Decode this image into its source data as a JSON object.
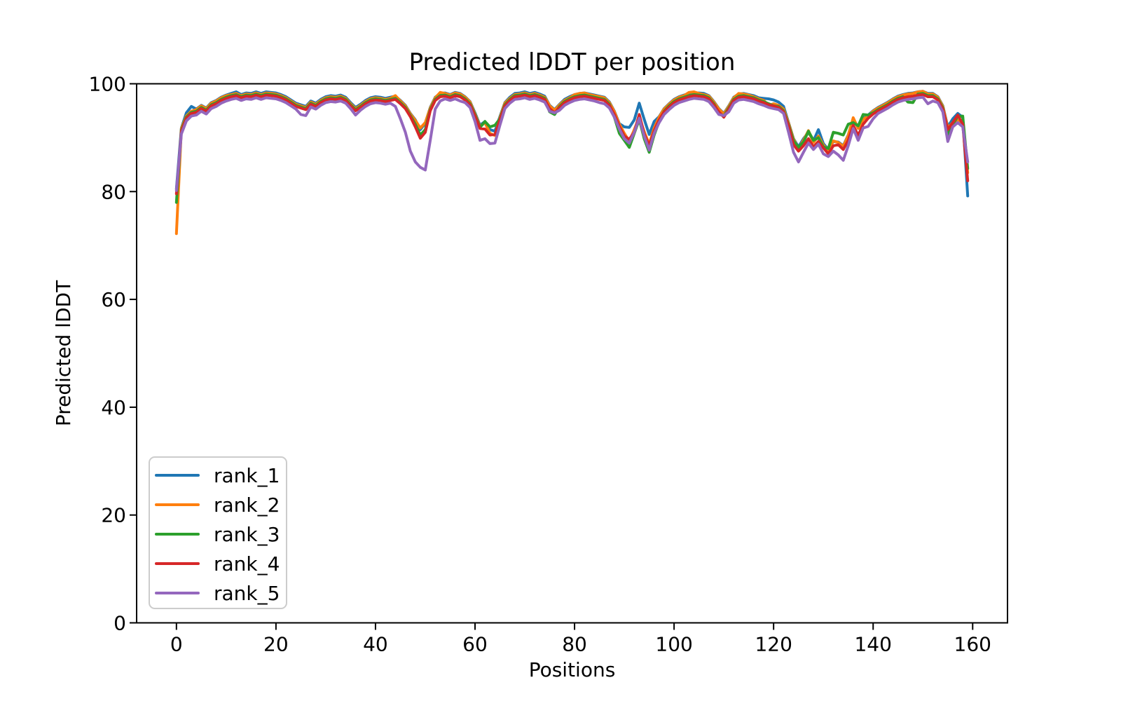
{
  "figure": {
    "background": "#ffffff",
    "spine_color": "#000000",
    "legend_border_color": "#cccccc"
  },
  "chart_data": {
    "type": "line",
    "title": "Predicted lDDT per position",
    "xlabel": "Positions",
    "ylabel": "Predicted lDDT",
    "xlim": [
      -8,
      167
    ],
    "ylim": [
      0,
      100
    ],
    "x_ticks": [
      0,
      20,
      40,
      60,
      80,
      100,
      120,
      140,
      160
    ],
    "y_ticks": [
      0,
      20,
      40,
      60,
      80,
      100
    ],
    "grid": false,
    "legend_position": "lower left",
    "n_points": 160,
    "x_start": 0,
    "x_step": 1,
    "series": [
      {
        "name": "rank_1",
        "color": "#1f77b4",
        "values": [
          80.5,
          91.8,
          94.6,
          95.8,
          95.3,
          96.0,
          95.5,
          96.5,
          96.9,
          97.5,
          97.9,
          98.2,
          98.5,
          98.0,
          98.3,
          98.2,
          98.5,
          98.2,
          98.5,
          98.4,
          98.3,
          98.0,
          97.6,
          97.0,
          96.4,
          96.1,
          95.8,
          96.8,
          96.4,
          97.1,
          97.6,
          97.8,
          97.7,
          97.9,
          97.5,
          96.5,
          95.6,
          96.2,
          96.9,
          97.4,
          97.6,
          97.5,
          97.3,
          97.5,
          97.7,
          96.9,
          96.0,
          94.5,
          93.3,
          91.5,
          92.7,
          95.6,
          97.5,
          98.2,
          98.3,
          98.0,
          98.4,
          98.2,
          97.6,
          96.7,
          94.6,
          92.3,
          93.0,
          91.5,
          91.2,
          93.9,
          96.5,
          97.5,
          98.2,
          98.3,
          98.5,
          98.2,
          98.4,
          98.1,
          97.7,
          96.0,
          95.2,
          96.2,
          97.1,
          97.6,
          98.0,
          98.2,
          98.3,
          98.1,
          97.9,
          97.7,
          97.5,
          96.6,
          94.9,
          92.6,
          92.0,
          91.9,
          93.3,
          96.4,
          93.4,
          90.6,
          93.0,
          93.9,
          95.4,
          96.3,
          97.1,
          97.6,
          97.9,
          98.2,
          98.3,
          98.3,
          98.2,
          97.8,
          96.7,
          95.4,
          94.5,
          95.9,
          97.5,
          98.1,
          98.2,
          98.0,
          97.8,
          97.4,
          97.3,
          97.2,
          97.0,
          96.6,
          95.8,
          92.8,
          89.8,
          88.3,
          89.8,
          91.0,
          89.4,
          91.5,
          88.9,
          87.8,
          89.3,
          89.2,
          88.5,
          90.5,
          93.5,
          91.8,
          93.5,
          94.2,
          95.0,
          95.6,
          96.1,
          96.6,
          97.2,
          97.7,
          98.0,
          98.2,
          98.3,
          98.5,
          98.6,
          98.2,
          98.2,
          97.6,
          95.9,
          92.0,
          93.5,
          94.5,
          93.8,
          79.2
        ]
      },
      {
        "name": "rank_2",
        "color": "#ff7f0e",
        "values": [
          72.2,
          91.7,
          94.0,
          94.9,
          95.2,
          95.9,
          95.4,
          96.4,
          96.8,
          97.4,
          97.8,
          98.0,
          98.2,
          97.8,
          98.1,
          98.0,
          98.3,
          98.0,
          98.3,
          98.2,
          98.1,
          97.8,
          97.4,
          96.8,
          96.2,
          95.9,
          95.6,
          96.6,
          96.2,
          96.9,
          97.4,
          97.6,
          97.5,
          97.7,
          97.3,
          96.3,
          95.4,
          96.0,
          96.7,
          97.2,
          97.4,
          97.3,
          97.1,
          97.3,
          97.8,
          96.8,
          95.9,
          94.4,
          93.2,
          91.8,
          92.8,
          95.5,
          97.4,
          98.4,
          98.2,
          97.9,
          98.3,
          98.1,
          97.5,
          96.6,
          94.4,
          92.1,
          92.8,
          90.8,
          90.4,
          93.7,
          96.4,
          97.3,
          98.0,
          98.1,
          98.3,
          98.0,
          98.2,
          97.9,
          97.5,
          95.9,
          95.1,
          96.1,
          96.9,
          97.4,
          98.0,
          98.2,
          98.3,
          98.0,
          97.8,
          97.6,
          97.4,
          96.5,
          94.8,
          92.5,
          90.8,
          89.3,
          91.5,
          93.8,
          91.1,
          88.8,
          91.8,
          93.8,
          95.3,
          96.2,
          97.0,
          97.5,
          97.8,
          98.4,
          98.5,
          98.2,
          98.0,
          97.7,
          96.6,
          95.3,
          94.4,
          95.8,
          97.4,
          98.2,
          98.1,
          97.9,
          97.6,
          97.2,
          96.9,
          96.0,
          96.3,
          96.0,
          95.3,
          92.7,
          89.7,
          88.0,
          89.5,
          91.3,
          89.1,
          90.3,
          88.6,
          87.7,
          89.4,
          89.1,
          88.4,
          90.4,
          93.7,
          91.7,
          93.4,
          94.0,
          94.9,
          95.5,
          96.0,
          96.5,
          97.1,
          97.6,
          97.9,
          98.1,
          98.2,
          98.5,
          98.6,
          98.1,
          98.1,
          97.5,
          95.8,
          91.8,
          92.8,
          93.2,
          92.8,
          83.5
        ]
      },
      {
        "name": "rank_3",
        "color": "#2ca02c",
        "values": [
          78.0,
          91.4,
          93.8,
          94.7,
          94.9,
          95.6,
          95.1,
          96.1,
          96.5,
          97.1,
          97.5,
          97.8,
          98.0,
          97.6,
          97.9,
          97.8,
          98.1,
          97.8,
          98.1,
          98.0,
          97.9,
          97.6,
          97.2,
          96.6,
          96.0,
          95.7,
          95.4,
          96.4,
          96.0,
          96.7,
          97.2,
          97.4,
          97.3,
          97.5,
          97.1,
          96.1,
          95.2,
          95.8,
          96.5,
          97.0,
          97.2,
          97.1,
          96.9,
          97.1,
          97.3,
          96.5,
          95.6,
          94.1,
          92.5,
          90.5,
          91.5,
          95.2,
          97.1,
          97.8,
          97.9,
          97.6,
          98.0,
          97.8,
          97.2,
          96.3,
          94.2,
          91.9,
          93.0,
          92.0,
          92.3,
          93.5,
          96.1,
          97.1,
          97.8,
          97.9,
          98.1,
          97.8,
          98.0,
          97.7,
          97.3,
          94.8,
          94.3,
          95.8,
          96.7,
          97.2,
          97.6,
          97.8,
          97.9,
          97.7,
          97.5,
          97.3,
          97.1,
          96.2,
          93.8,
          90.8,
          89.5,
          88.2,
          90.8,
          93.4,
          89.8,
          87.3,
          90.5,
          93.0,
          94.9,
          95.9,
          96.7,
          97.2,
          97.5,
          97.8,
          98.0,
          97.9,
          97.8,
          97.4,
          96.3,
          94.6,
          94.0,
          95.5,
          97.1,
          97.7,
          97.8,
          97.6,
          97.4,
          97.0,
          96.7,
          96.3,
          95.9,
          95.8,
          95.0,
          92.4,
          89.4,
          88.2,
          89.2,
          91.2,
          89.5,
          90.0,
          88.3,
          88.0,
          91.0,
          90.8,
          90.5,
          92.5,
          92.8,
          92.2,
          94.3,
          94.2,
          94.6,
          95.2,
          95.7,
          96.2,
          96.8,
          97.3,
          97.6,
          96.6,
          96.5,
          98.1,
          98.2,
          97.8,
          97.8,
          97.2,
          95.5,
          90.6,
          92.5,
          93.9,
          94.0,
          84.3
        ]
      },
      {
        "name": "rank_4",
        "color": "#d62728",
        "values": [
          79.6,
          91.2,
          93.6,
          94.5,
          94.7,
          95.4,
          94.9,
          95.9,
          96.3,
          96.9,
          97.3,
          97.6,
          97.8,
          97.4,
          97.7,
          97.6,
          97.9,
          97.6,
          97.9,
          97.8,
          97.7,
          97.4,
          97.0,
          96.4,
          95.8,
          95.5,
          95.2,
          96.2,
          95.8,
          96.5,
          97.0,
          97.2,
          97.1,
          97.3,
          96.9,
          95.9,
          95.0,
          95.6,
          96.3,
          96.8,
          97.0,
          96.9,
          96.7,
          96.9,
          97.1,
          96.3,
          95.4,
          93.9,
          92.0,
          89.9,
          91.0,
          95.0,
          96.9,
          97.6,
          97.7,
          97.4,
          97.8,
          97.6,
          97.0,
          96.1,
          94.0,
          91.7,
          91.6,
          90.5,
          90.6,
          93.3,
          95.9,
          96.9,
          97.6,
          97.7,
          97.9,
          97.6,
          97.8,
          97.5,
          97.1,
          95.4,
          94.6,
          95.6,
          96.5,
          97.0,
          97.4,
          97.6,
          97.7,
          97.5,
          97.3,
          97.1,
          96.9,
          96.0,
          94.3,
          92.1,
          90.3,
          89.7,
          91.0,
          94.3,
          90.7,
          88.5,
          91.3,
          93.3,
          94.8,
          95.7,
          96.5,
          97.0,
          97.3,
          97.6,
          97.8,
          97.7,
          97.6,
          97.2,
          96.1,
          94.8,
          93.8,
          95.3,
          96.9,
          97.5,
          97.6,
          97.4,
          97.2,
          96.8,
          96.5,
          96.1,
          95.9,
          95.6,
          94.8,
          92.2,
          88.7,
          87.5,
          88.5,
          89.8,
          88.3,
          89.3,
          88.1,
          87.0,
          88.5,
          88.7,
          87.8,
          89.5,
          92.3,
          90.4,
          92.5,
          93.6,
          94.4,
          95.0,
          95.5,
          96.0,
          96.6,
          97.1,
          97.4,
          97.6,
          97.7,
          97.9,
          98.0,
          97.6,
          97.6,
          97.0,
          95.3,
          91.5,
          92.8,
          94.2,
          92.5,
          82.0
        ]
      },
      {
        "name": "rank_5",
        "color": "#9467bd",
        "values": [
          80.2,
          90.7,
          93.1,
          94.0,
          94.2,
          94.9,
          94.4,
          95.4,
          95.8,
          96.4,
          96.8,
          97.1,
          97.3,
          96.9,
          97.2,
          97.1,
          97.4,
          97.1,
          97.4,
          97.3,
          97.2,
          96.9,
          96.5,
          95.9,
          95.3,
          94.3,
          94.1,
          95.7,
          95.3,
          96.0,
          96.5,
          96.7,
          96.6,
          96.8,
          96.4,
          95.4,
          94.2,
          95.1,
          95.8,
          96.3,
          96.5,
          96.4,
          96.2,
          96.4,
          95.8,
          93.5,
          91.0,
          87.5,
          85.5,
          84.5,
          84.0,
          89.5,
          95.3,
          96.8,
          97.2,
          96.9,
          97.2,
          96.8,
          96.5,
          95.6,
          93.0,
          89.5,
          89.8,
          88.9,
          89.0,
          92.3,
          95.4,
          96.4,
          97.1,
          97.2,
          97.4,
          97.1,
          97.3,
          97.0,
          96.6,
          94.9,
          94.6,
          95.1,
          96.0,
          96.5,
          96.9,
          97.1,
          97.2,
          97.0,
          96.8,
          96.5,
          96.3,
          95.5,
          93.8,
          91.6,
          89.8,
          89.0,
          91.0,
          93.6,
          90.3,
          87.7,
          90.8,
          92.8,
          94.3,
          95.2,
          96.0,
          96.5,
          96.8,
          97.1,
          97.3,
          97.2,
          97.1,
          96.7,
          95.6,
          94.3,
          94.1,
          94.8,
          96.4,
          97.0,
          97.1,
          96.9,
          96.7,
          96.3,
          96.0,
          95.6,
          95.4,
          95.2,
          94.5,
          91.0,
          87.3,
          85.5,
          87.3,
          89.0,
          87.8,
          88.8,
          87.0,
          86.5,
          87.5,
          86.8,
          85.8,
          88.5,
          91.7,
          89.5,
          91.8,
          92.1,
          93.5,
          94.5,
          95.0,
          95.5,
          96.1,
          96.6,
          96.9,
          97.1,
          97.2,
          97.4,
          97.5,
          96.3,
          96.8,
          96.5,
          94.8,
          89.3,
          92.0,
          92.8,
          92.0,
          85.5
        ]
      }
    ]
  }
}
